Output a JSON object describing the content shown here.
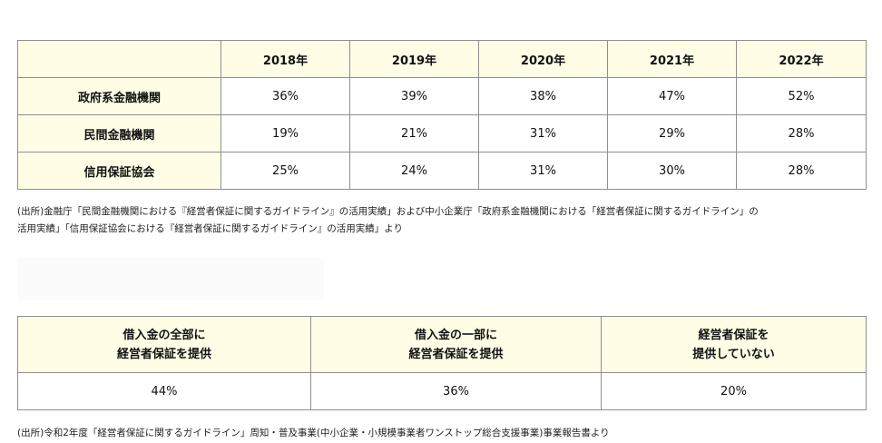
{
  "table1": {
    "columns": [
      "",
      "2018年",
      "2019年",
      "2020年",
      "2021年",
      "2022年"
    ],
    "rows": [
      {
        "label": "政府系金融機関",
        "values": [
          "36%",
          "39%",
          "38%",
          "47%",
          "52%"
        ]
      },
      {
        "label": "民間金融機関",
        "values": [
          "19%",
          "21%",
          "31%",
          "29%",
          "28%"
        ]
      },
      {
        "label": "信用保証協会",
        "values": [
          "25%",
          "24%",
          "31%",
          "30%",
          "28%"
        ]
      }
    ]
  },
  "source1": {
    "line1": "(出所)金融庁「民間金融機関における『経営者保証に関するガイドライン』の活用実績」および中小企業庁「政府系金融機関における「経営者保証に関するガイドライン」の",
    "line2": "活用実績」「信用保証協会における『経営者保証に関するガイドライン』の活用実績」より"
  },
  "table2": {
    "headers": [
      {
        "line1": "借入金の全部に",
        "line2": "経営者保証を提供"
      },
      {
        "line1": "借入金の一部に",
        "line2": "経営者保証を提供"
      },
      {
        "line1": "経営者保証を",
        "line2": "提供していない"
      }
    ],
    "values": [
      "44%",
      "36%",
      "20%"
    ]
  },
  "source2": {
    "text": "(出所)令和2年度「経営者保証に関するガイドライン」周知・普及事業(中小企業・小規模事業者ワンストップ総合支援事業)事業報告書より"
  }
}
